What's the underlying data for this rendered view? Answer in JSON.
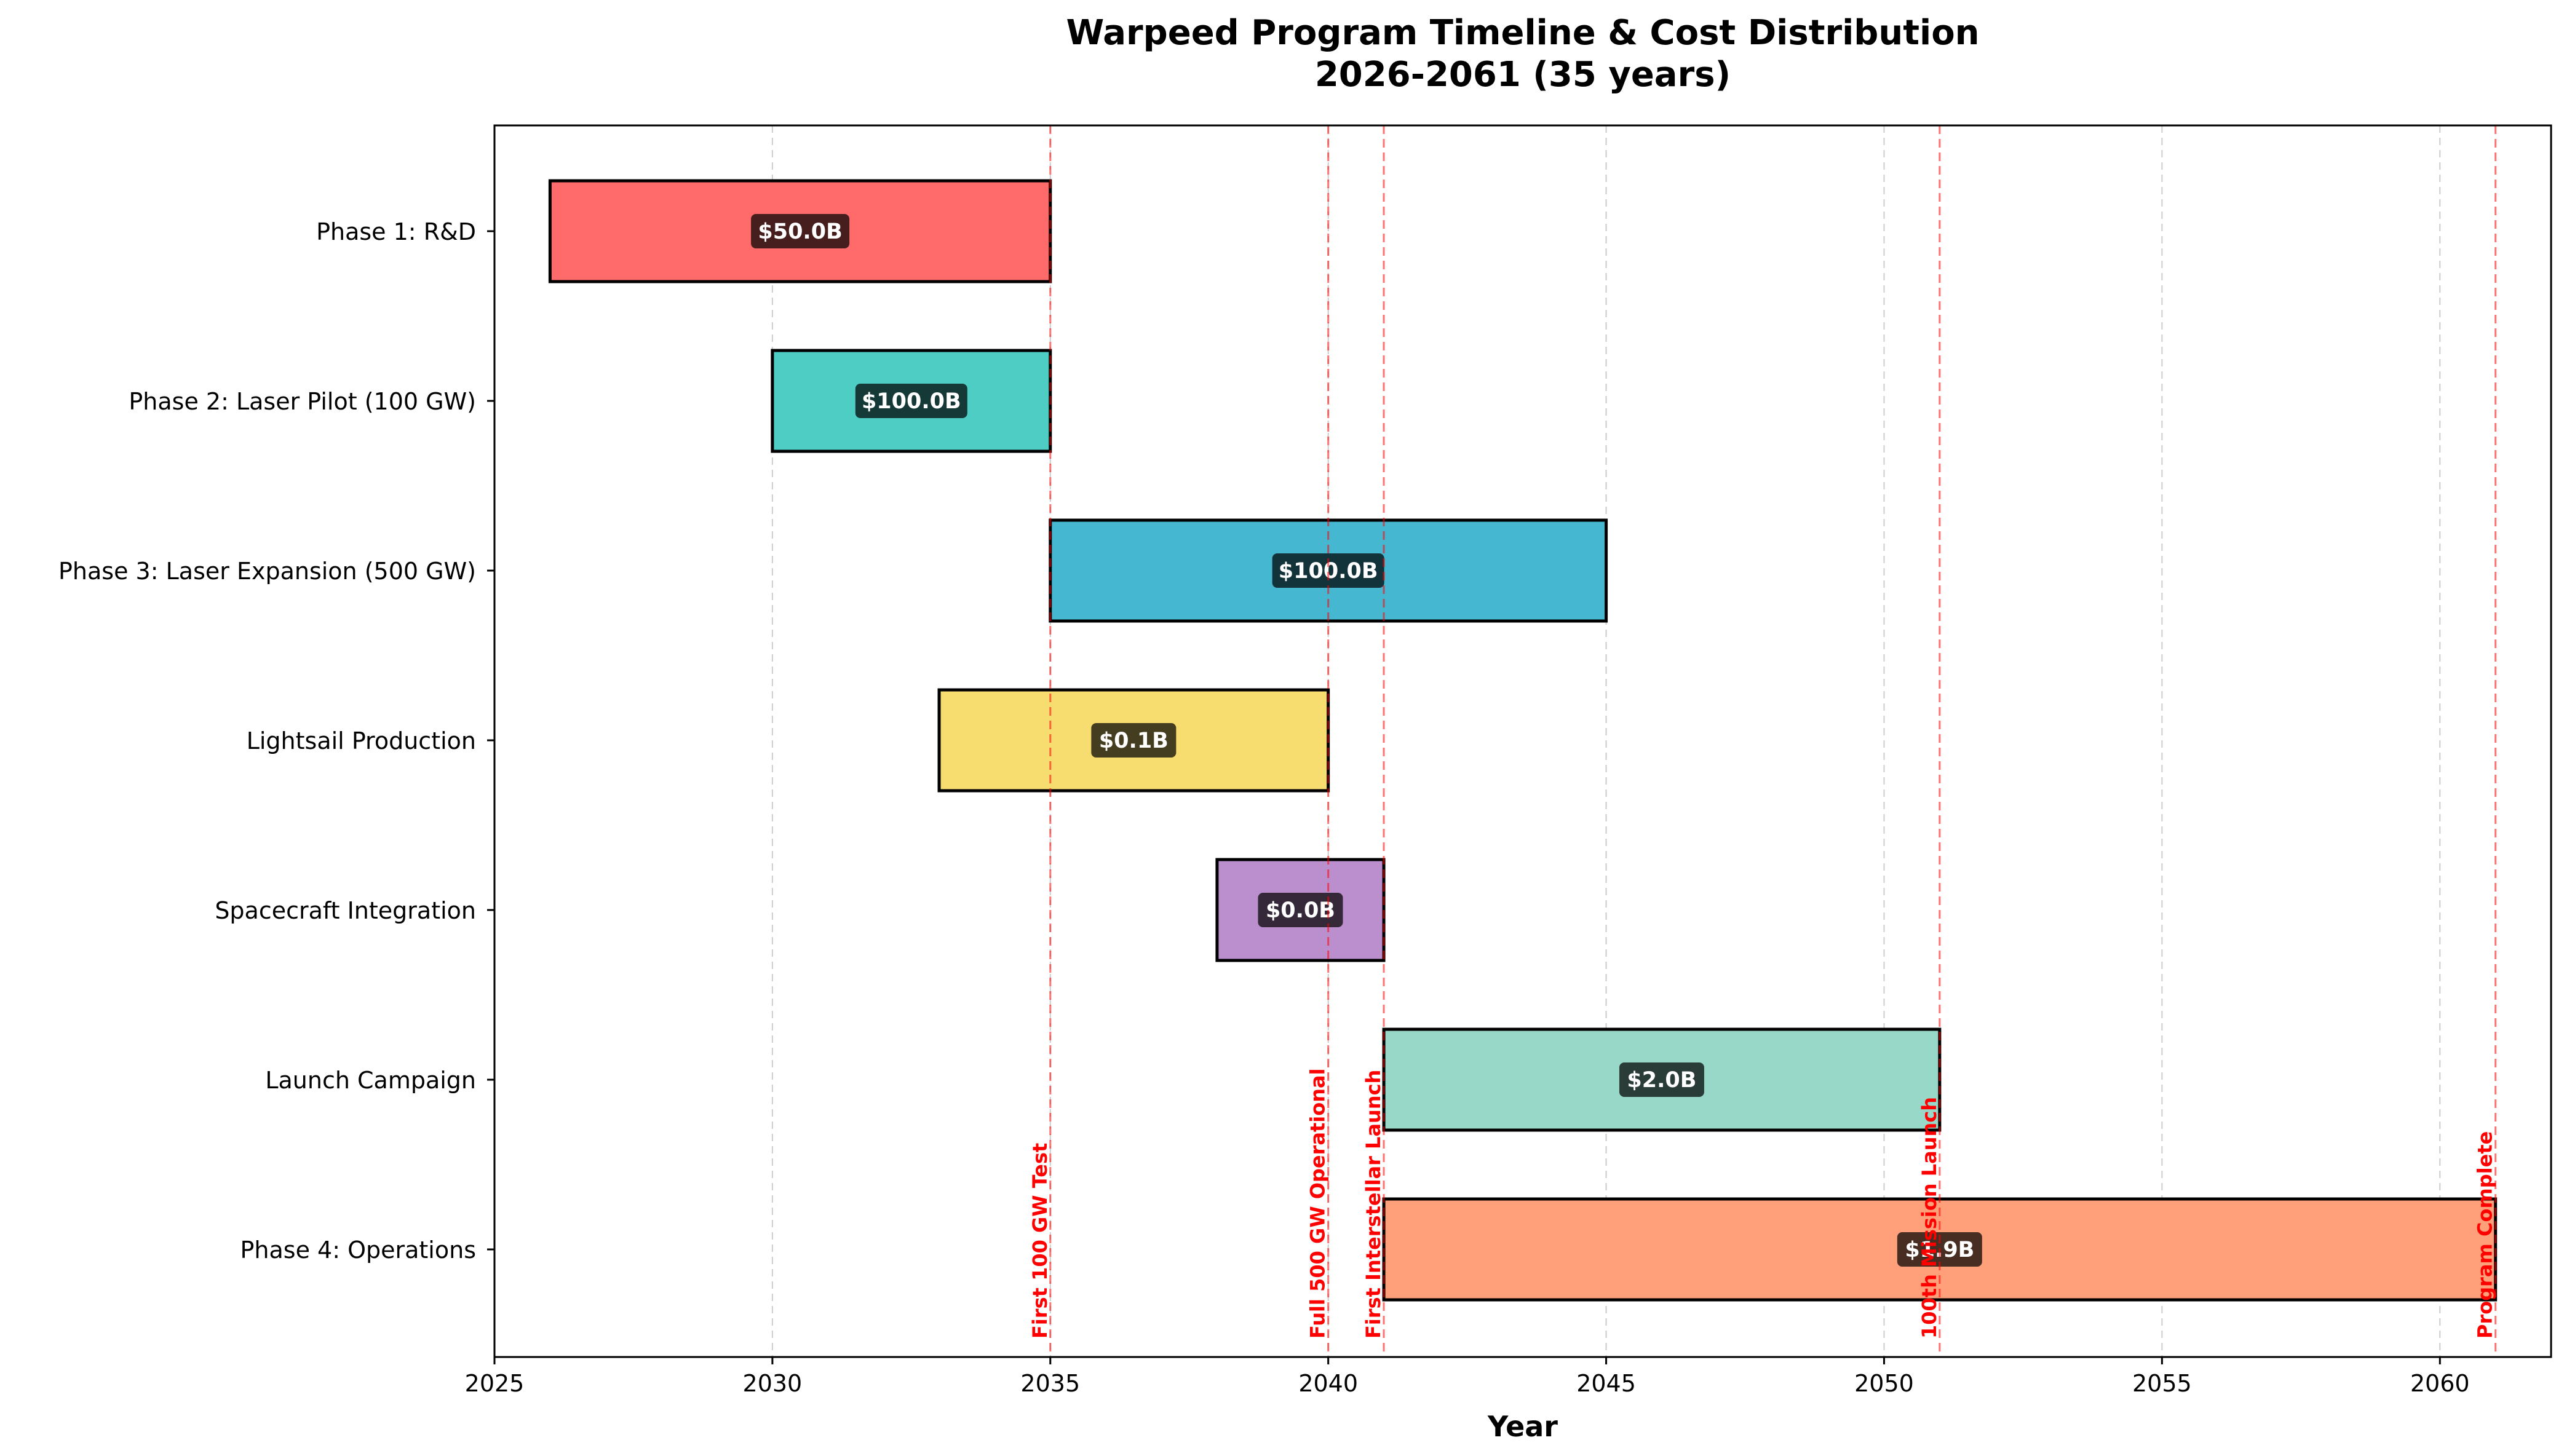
{
  "chart_data": {
    "type": "gantt",
    "title": "Warpeed Program Timeline & Cost Distribution",
    "subtitle": "2026-2061 (35 years)",
    "xlabel": "Year",
    "ylabel": "",
    "xlim": [
      2025,
      2062
    ],
    "x_ticks": [
      2025,
      2030,
      2035,
      2040,
      2045,
      2050,
      2055,
      2060
    ],
    "grid": "vertical dashed",
    "tasks": [
      {
        "name": "Phase 1: R&D",
        "start": 2026,
        "end": 2035,
        "cost_label": "$50.0B",
        "color": "#ff6b6b"
      },
      {
        "name": "Phase 2: Laser Pilot (100 GW)",
        "start": 2030,
        "end": 2035,
        "cost_label": "$100.0B",
        "color": "#4ecdc4"
      },
      {
        "name": "Phase 3: Laser Expansion (500 GW)",
        "start": 2035,
        "end": 2045,
        "cost_label": "$100.0B",
        "color": "#45b7d1"
      },
      {
        "name": "Lightsail Production",
        "start": 2033,
        "end": 2040,
        "cost_label": "$0.1B",
        "color": "#f7dc6f"
      },
      {
        "name": "Spacecraft Integration",
        "start": 2038,
        "end": 2041,
        "cost_label": "$0.0B",
        "color": "#bb8fce"
      },
      {
        "name": "Launch Campaign",
        "start": 2041,
        "end": 2051,
        "cost_label": "$2.0B",
        "color": "#98d8c8"
      },
      {
        "name": "Phase 4: Operations",
        "start": 2041,
        "end": 2061,
        "cost_label": "$1.9B",
        "color": "#ffa07a"
      }
    ],
    "milestones": [
      {
        "year": 2035,
        "label": "First 100 GW Test"
      },
      {
        "year": 2040,
        "label": "Full 500 GW Operational"
      },
      {
        "year": 2041,
        "label": "First Interstellar Launch"
      },
      {
        "year": 2051,
        "label": "100th Mission Launch"
      },
      {
        "year": 2061,
        "label": "Program Complete"
      }
    ],
    "milestone_color": "#ff0000"
  }
}
